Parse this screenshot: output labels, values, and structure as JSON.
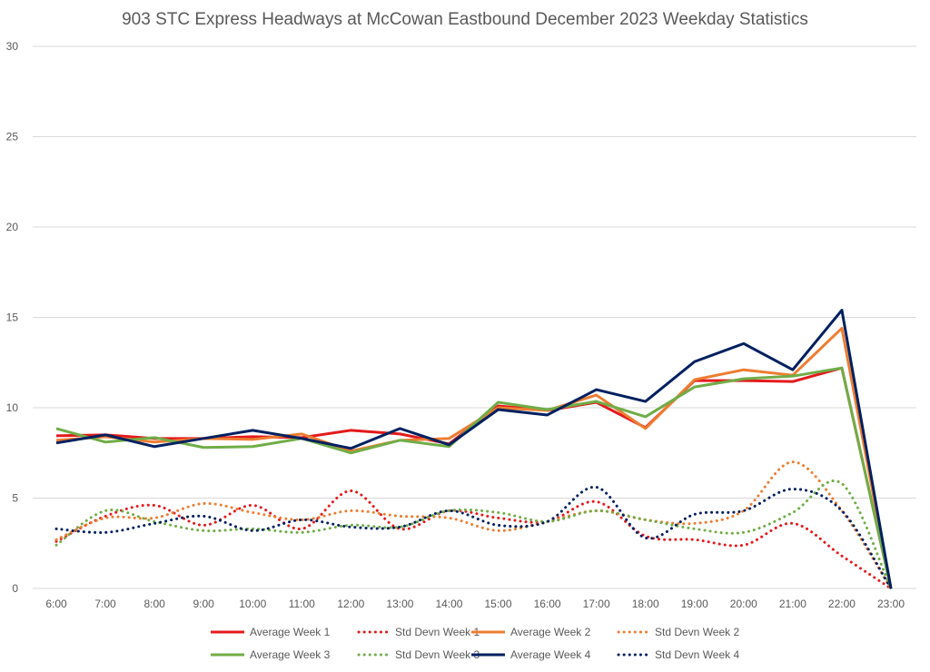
{
  "chart_data": {
    "type": "line",
    "title": "903 STC Express Headways at McCowan Eastbound December 2023 Weekday Statistics",
    "xlabel": "",
    "ylabel": "",
    "ylim": [
      0,
      30
    ],
    "yticks": [
      "0",
      "5",
      "10",
      "15",
      "20",
      "25",
      "30"
    ],
    "ytick_values": [
      0,
      5,
      10,
      15,
      20,
      25,
      30
    ],
    "grid": true,
    "legend_position": "bottom",
    "categories": [
      "6:00",
      "7:00",
      "8:00",
      "9:00",
      "10:00",
      "11:00",
      "12:00",
      "13:00",
      "14:00",
      "15:00",
      "16:00",
      "17:00",
      "18:00",
      "19:00",
      "20:00",
      "21:00",
      "22:00",
      "23:00"
    ],
    "series": [
      {
        "name": "Average Week 1",
        "color": "#e41a1c",
        "style": "solid",
        "smooth": false,
        "values": [
          8.45,
          8.5,
          8.3,
          8.3,
          8.4,
          8.35,
          8.75,
          8.55,
          8.0,
          10.1,
          9.85,
          10.3,
          8.9,
          11.5,
          11.5,
          11.45,
          12.2,
          0
        ]
      },
      {
        "name": "Std Devn Week 1",
        "color": "#e41a1c",
        "style": "dotted",
        "smooth": true,
        "values": [
          2.6,
          4.0,
          4.6,
          3.5,
          4.6,
          3.3,
          5.4,
          3.3,
          4.3,
          3.9,
          3.7,
          4.8,
          2.9,
          2.7,
          2.4,
          3.6,
          1.8,
          0
        ]
      },
      {
        "name": "Average Week 2",
        "color": "#ed7d31",
        "style": "solid",
        "smooth": false,
        "values": [
          8.2,
          8.4,
          8.1,
          8.3,
          8.25,
          8.55,
          7.6,
          8.2,
          8.3,
          10.0,
          9.85,
          10.7,
          8.85,
          11.55,
          12.1,
          11.8,
          14.4,
          0
        ]
      },
      {
        "name": "Std Devn Week 2",
        "color": "#ed7d31",
        "style": "dotted",
        "smooth": true,
        "values": [
          2.7,
          3.9,
          3.9,
          4.7,
          4.2,
          3.8,
          4.3,
          4.0,
          3.9,
          3.2,
          3.7,
          4.3,
          3.8,
          3.6,
          4.3,
          7.0,
          4.3,
          0
        ]
      },
      {
        "name": "Average Week 3",
        "color": "#70ad47",
        "style": "solid",
        "smooth": false,
        "values": [
          8.85,
          8.1,
          8.35,
          7.8,
          7.85,
          8.3,
          7.5,
          8.2,
          7.85,
          10.3,
          9.9,
          10.35,
          9.5,
          11.15,
          11.6,
          11.75,
          12.2,
          0
        ]
      },
      {
        "name": "Std Devn Week 3",
        "color": "#70ad47",
        "style": "dotted",
        "smooth": true,
        "values": [
          2.4,
          4.3,
          3.7,
          3.2,
          3.3,
          3.1,
          3.5,
          3.4,
          4.3,
          4.2,
          3.7,
          4.3,
          3.8,
          3.3,
          3.1,
          4.2,
          5.8,
          0
        ]
      },
      {
        "name": "Average Week 4",
        "color": "#002060",
        "style": "solid",
        "smooth": false,
        "values": [
          8.05,
          8.5,
          7.85,
          8.3,
          8.75,
          8.3,
          7.75,
          8.85,
          7.95,
          9.9,
          9.6,
          11.0,
          10.35,
          12.55,
          13.55,
          12.1,
          15.4,
          0
        ]
      },
      {
        "name": "Std Devn Week 4",
        "color": "#002060",
        "style": "dotted",
        "smooth": true,
        "values": [
          3.3,
          3.1,
          3.6,
          4.0,
          3.2,
          3.8,
          3.4,
          3.4,
          4.3,
          3.5,
          3.7,
          5.6,
          2.8,
          4.1,
          4.3,
          5.5,
          4.3,
          0
        ]
      }
    ]
  }
}
